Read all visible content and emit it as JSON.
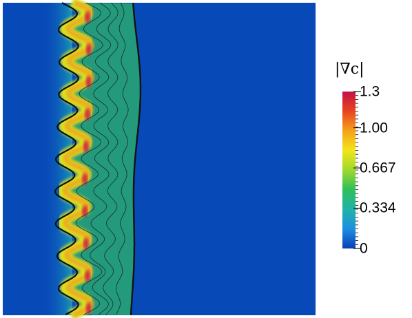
{
  "colorbar": {
    "title": "|∇c|",
    "ticks": [
      {
        "label": "1.3",
        "value": 1.3
      },
      {
        "label": "1.00",
        "value": 1.0
      },
      {
        "label": "0.667",
        "value": 0.667
      },
      {
        "label": "0.334",
        "value": 0.334
      },
      {
        "label": "0",
        "value": 0
      }
    ],
    "range": [
      0,
      1.3
    ],
    "stops": [
      "#0b3fb8",
      "#1d8fe0",
      "#21b3a8",
      "#2fbf5a",
      "#9fd92a",
      "#f2e51a",
      "#f5a11a",
      "#e8431f",
      "#c3124a"
    ]
  },
  "field": {
    "background": "#0849b8",
    "band_color": "#249a7c",
    "iso_color": "#1a1a1a"
  }
}
